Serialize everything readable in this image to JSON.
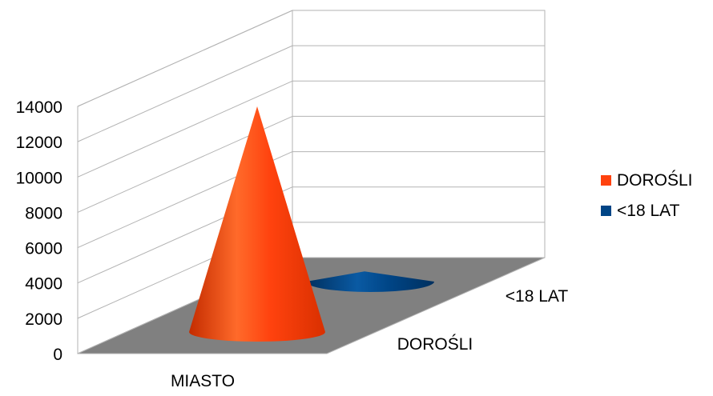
{
  "chart_data": {
    "type": "3d-cone-bar",
    "title": "",
    "categories": [
      "MIASTO"
    ],
    "depth_categories": [
      "DOROŚLI",
      "<18 LAT"
    ],
    "series": [
      {
        "name": "DOROŚLI",
        "color": "#ff420e",
        "values": [
          14000
        ]
      },
      {
        "name": "<18 LAT",
        "color": "#004586",
        "values": [
          1800
        ]
      }
    ],
    "y_ticks": [
      "0",
      "2000",
      "4000",
      "6000",
      "8000",
      "10000",
      "12000",
      "14000"
    ],
    "ylim": [
      0,
      14000
    ],
    "grid": true,
    "floor_color": "#808080",
    "legend_position": "right"
  }
}
